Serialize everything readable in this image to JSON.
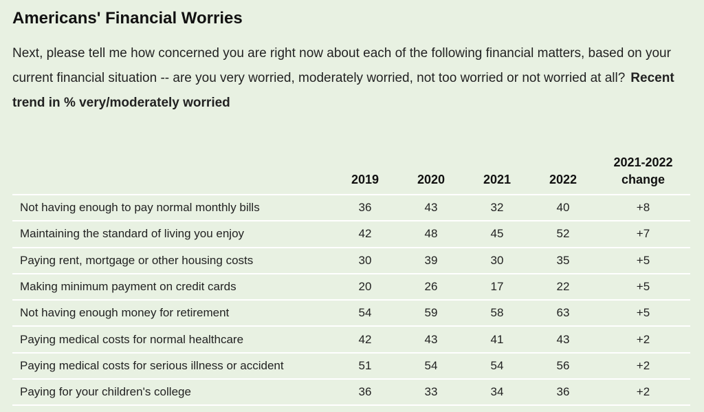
{
  "title": "Americans' Financial Worries",
  "question": "Next, please tell me how concerned you are right now about each of the following financial matters, based on your current financial situation -- are you very worried, moderately worried, not too worried or not worried at all?",
  "trend_label": "Recent trend in % very/moderately worried",
  "chart_data": {
    "type": "table",
    "columns": [
      "",
      "2019",
      "2020",
      "2021",
      "2022",
      "2021-2022 change"
    ],
    "rows": [
      {
        "label": "Not having enough to pay normal monthly bills",
        "values": [
          "36",
          "43",
          "32",
          "40",
          "+8"
        ]
      },
      {
        "label": "Maintaining the standard of living you enjoy",
        "values": [
          "42",
          "48",
          "45",
          "52",
          "+7"
        ]
      },
      {
        "label": "Paying rent, mortgage or other housing costs",
        "values": [
          "30",
          "39",
          "30",
          "35",
          "+5"
        ]
      },
      {
        "label": "Making minimum payment on credit cards",
        "values": [
          "20",
          "26",
          "17",
          "22",
          "+5"
        ]
      },
      {
        "label": "Not having enough money for retirement",
        "values": [
          "54",
          "59",
          "58",
          "63",
          "+5"
        ]
      },
      {
        "label": "Paying medical costs for normal healthcare",
        "values": [
          "42",
          "43",
          "41",
          "43",
          "+2"
        ]
      },
      {
        "label": "Paying medical costs for serious illness or accident",
        "values": [
          "51",
          "54",
          "54",
          "56",
          "+2"
        ]
      },
      {
        "label": "Paying for your children's college",
        "values": [
          "36",
          "33",
          "34",
          "36",
          "+2"
        ]
      }
    ]
  }
}
